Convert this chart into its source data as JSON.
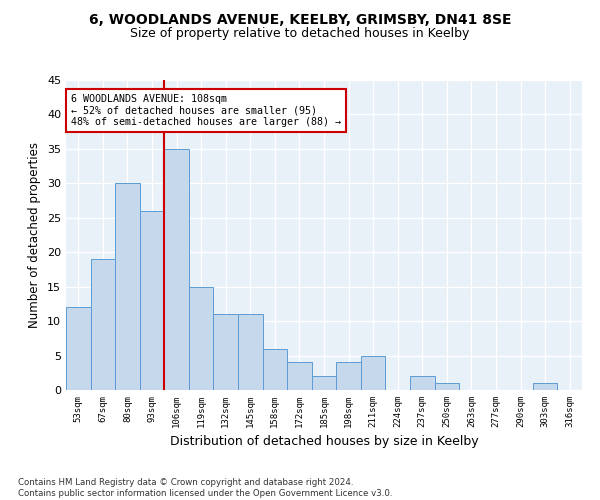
{
  "title1": "6, WOODLANDS AVENUE, KEELBY, GRIMSBY, DN41 8SE",
  "title2": "Size of property relative to detached houses in Keelby",
  "xlabel": "Distribution of detached houses by size in Keelby",
  "ylabel": "Number of detached properties",
  "bin_labels": [
    "53sqm",
    "67sqm",
    "80sqm",
    "93sqm",
    "106sqm",
    "119sqm",
    "132sqm",
    "145sqm",
    "158sqm",
    "172sqm",
    "185sqm",
    "198sqm",
    "211sqm",
    "224sqm",
    "237sqm",
    "250sqm",
    "263sqm",
    "277sqm",
    "290sqm",
    "303sqm",
    "316sqm"
  ],
  "bar_values": [
    12,
    19,
    30,
    26,
    35,
    15,
    11,
    11,
    6,
    4,
    2,
    4,
    5,
    0,
    2,
    1,
    0,
    0,
    0,
    1,
    0
  ],
  "bar_color": "#c6d9ec",
  "bar_edge_color": "#5b9bd5",
  "vline_index": 4,
  "vline_color": "#cc0000",
  "annotation_line1": "6 WOODLANDS AVENUE: 108sqm",
  "annotation_line2": "← 52% of detached houses are smaller (95)",
  "annotation_line3": "48% of semi-detached houses are larger (88) →",
  "annotation_box_color": "#ffffff",
  "annotation_box_edge": "#cc0000",
  "ylim": [
    0,
    45
  ],
  "yticks": [
    0,
    5,
    10,
    15,
    20,
    25,
    30,
    35,
    40,
    45
  ],
  "background_color": "#e8f0f8",
  "footer_text": "Contains HM Land Registry data © Crown copyright and database right 2024.\nContains public sector information licensed under the Open Government Licence v3.0.",
  "grid_color": "#ffffff",
  "title1_fontsize": 10,
  "title2_fontsize": 9,
  "xlabel_fontsize": 9,
  "ylabel_fontsize": 8.5
}
